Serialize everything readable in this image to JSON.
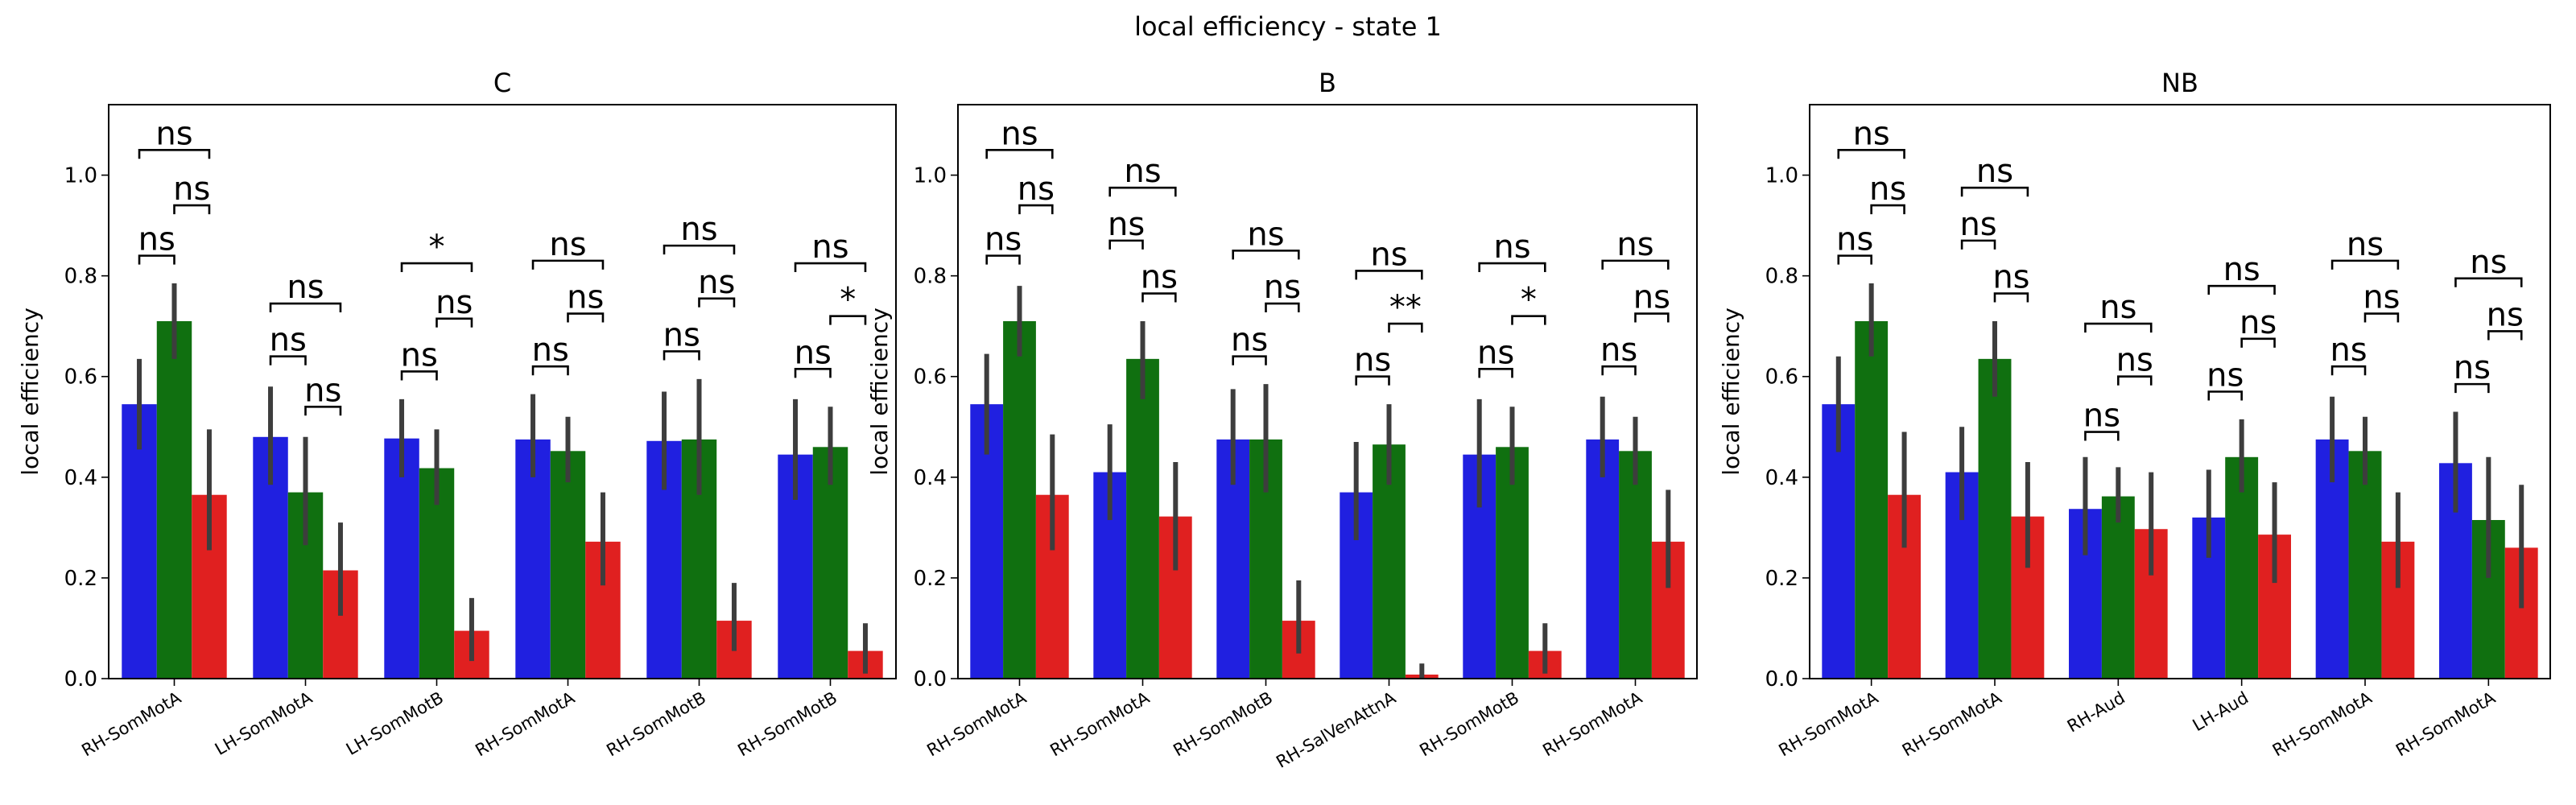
{
  "figure": {
    "title": "local efficiency - state 1"
  },
  "chart_data": [
    {
      "type": "bar",
      "title": "C",
      "ylabel": "local efficiency",
      "xlabel": "",
      "ylim": [
        0,
        1.14
      ],
      "yticks": [
        "0.0",
        "0.2",
        "0.4",
        "0.6",
        "0.8",
        "1.0"
      ],
      "categories": [
        "RH-SomMotA",
        "LH-SomMotA",
        "LH-SomMotB",
        "RH-SomMotA",
        "RH-SomMotB",
        "RH-SomMotB"
      ],
      "series": [
        {
          "color": "#2020e0",
          "values": [
            0.545,
            0.48,
            0.477,
            0.475,
            0.472,
            0.445
          ],
          "err_low": [
            0.455,
            0.385,
            0.4,
            0.4,
            0.375,
            0.355
          ],
          "err_high": [
            0.635,
            0.58,
            0.555,
            0.565,
            0.57,
            0.555
          ]
        },
        {
          "color": "#107010",
          "values": [
            0.71,
            0.37,
            0.418,
            0.452,
            0.475,
            0.46
          ],
          "err_low": [
            0.635,
            0.265,
            0.345,
            0.39,
            0.365,
            0.385
          ],
          "err_high": [
            0.785,
            0.48,
            0.495,
            0.52,
            0.595,
            0.54
          ]
        },
        {
          "color": "#e02020",
          "values": [
            0.365,
            0.215,
            0.095,
            0.272,
            0.115,
            0.055
          ],
          "err_low": [
            0.255,
            0.125,
            0.035,
            0.185,
            0.055,
            0.01
          ],
          "err_high": [
            0.495,
            0.31,
            0.16,
            0.37,
            0.19,
            0.11
          ]
        }
      ],
      "annotations": [
        {
          "group": 0,
          "from": 0,
          "to": 1,
          "y": 0.84,
          "label": "ns"
        },
        {
          "group": 0,
          "from": 1,
          "to": 2,
          "y": 0.94,
          "label": "ns"
        },
        {
          "group": 0,
          "from": 0,
          "to": 2,
          "y": 1.05,
          "label": "ns"
        },
        {
          "group": 1,
          "from": 0,
          "to": 1,
          "y": 0.64,
          "label": "ns"
        },
        {
          "group": 1,
          "from": 1,
          "to": 2,
          "y": 0.54,
          "label": "ns"
        },
        {
          "group": 1,
          "from": 0,
          "to": 2,
          "y": 0.745,
          "label": "ns"
        },
        {
          "group": 2,
          "from": 0,
          "to": 1,
          "y": 0.61,
          "label": "ns"
        },
        {
          "group": 2,
          "from": 1,
          "to": 2,
          "y": 0.715,
          "label": "ns"
        },
        {
          "group": 2,
          "from": 0,
          "to": 2,
          "y": 0.825,
          "label": "*"
        },
        {
          "group": 3,
          "from": 0,
          "to": 1,
          "y": 0.62,
          "label": "ns"
        },
        {
          "group": 3,
          "from": 1,
          "to": 2,
          "y": 0.725,
          "label": "ns"
        },
        {
          "group": 3,
          "from": 0,
          "to": 2,
          "y": 0.83,
          "label": "ns"
        },
        {
          "group": 4,
          "from": 0,
          "to": 1,
          "y": 0.65,
          "label": "ns"
        },
        {
          "group": 4,
          "from": 1,
          "to": 2,
          "y": 0.755,
          "label": "ns"
        },
        {
          "group": 4,
          "from": 0,
          "to": 2,
          "y": 0.86,
          "label": "ns"
        },
        {
          "group": 5,
          "from": 0,
          "to": 1,
          "y": 0.615,
          "label": "ns"
        },
        {
          "group": 5,
          "from": 1,
          "to": 2,
          "y": 0.72,
          "label": "*"
        },
        {
          "group": 5,
          "from": 0,
          "to": 2,
          "y": 0.825,
          "label": "ns"
        }
      ]
    },
    {
      "type": "bar",
      "title": "B",
      "ylabel": "local efficiency",
      "xlabel": "",
      "ylim": [
        0,
        1.14
      ],
      "yticks": [
        "0.0",
        "0.2",
        "0.4",
        "0.6",
        "0.8",
        "1.0"
      ],
      "categories": [
        "RH-SomMotA",
        "RH-SomMotA",
        "RH-SomMotB",
        "RH-SalVenAttnA",
        "RH-SomMotB",
        "RH-SomMotA"
      ],
      "series": [
        {
          "color": "#2020e0",
          "values": [
            0.545,
            0.41,
            0.475,
            0.37,
            0.445,
            0.475
          ],
          "err_low": [
            0.445,
            0.315,
            0.385,
            0.275,
            0.34,
            0.4
          ],
          "err_high": [
            0.645,
            0.505,
            0.575,
            0.47,
            0.555,
            0.56
          ]
        },
        {
          "color": "#107010",
          "values": [
            0.71,
            0.635,
            0.475,
            0.465,
            0.46,
            0.452
          ],
          "err_low": [
            0.64,
            0.555,
            0.37,
            0.385,
            0.385,
            0.385
          ],
          "err_high": [
            0.78,
            0.71,
            0.585,
            0.545,
            0.54,
            0.52
          ]
        },
        {
          "color": "#e02020",
          "values": [
            0.365,
            0.322,
            0.115,
            0.008,
            0.055,
            0.272
          ],
          "err_low": [
            0.255,
            0.215,
            0.05,
            0.0,
            0.01,
            0.18
          ],
          "err_high": [
            0.485,
            0.43,
            0.195,
            0.03,
            0.11,
            0.375
          ]
        }
      ],
      "annotations": [
        {
          "group": 0,
          "from": 0,
          "to": 1,
          "y": 0.84,
          "label": "ns"
        },
        {
          "group": 0,
          "from": 1,
          "to": 2,
          "y": 0.94,
          "label": "ns"
        },
        {
          "group": 0,
          "from": 0,
          "to": 2,
          "y": 1.05,
          "label": "ns"
        },
        {
          "group": 1,
          "from": 0,
          "to": 1,
          "y": 0.87,
          "label": "ns"
        },
        {
          "group": 1,
          "from": 1,
          "to": 2,
          "y": 0.765,
          "label": "ns"
        },
        {
          "group": 1,
          "from": 0,
          "to": 2,
          "y": 0.975,
          "label": "ns"
        },
        {
          "group": 2,
          "from": 0,
          "to": 1,
          "y": 0.64,
          "label": "ns"
        },
        {
          "group": 2,
          "from": 1,
          "to": 2,
          "y": 0.745,
          "label": "ns"
        },
        {
          "group": 2,
          "from": 0,
          "to": 2,
          "y": 0.85,
          "label": "ns"
        },
        {
          "group": 3,
          "from": 0,
          "to": 1,
          "y": 0.6,
          "label": "ns"
        },
        {
          "group": 3,
          "from": 1,
          "to": 2,
          "y": 0.705,
          "label": "**"
        },
        {
          "group": 3,
          "from": 0,
          "to": 2,
          "y": 0.81,
          "label": "ns"
        },
        {
          "group": 4,
          "from": 0,
          "to": 1,
          "y": 0.615,
          "label": "ns"
        },
        {
          "group": 4,
          "from": 1,
          "to": 2,
          "y": 0.72,
          "label": "*"
        },
        {
          "group": 4,
          "from": 0,
          "to": 2,
          "y": 0.825,
          "label": "ns"
        },
        {
          "group": 5,
          "from": 0,
          "to": 1,
          "y": 0.62,
          "label": "ns"
        },
        {
          "group": 5,
          "from": 1,
          "to": 2,
          "y": 0.725,
          "label": "ns"
        },
        {
          "group": 5,
          "from": 0,
          "to": 2,
          "y": 0.83,
          "label": "ns"
        }
      ]
    },
    {
      "type": "bar",
      "title": "NB",
      "ylabel": "local efficiency",
      "xlabel": "",
      "ylim": [
        0,
        1.14
      ],
      "yticks": [
        "0.0",
        "0.2",
        "0.4",
        "0.6",
        "0.8",
        "1.0"
      ],
      "categories": [
        "RH-SomMotA",
        "RH-SomMotA",
        "RH-Aud",
        "LH-Aud",
        "RH-SomMotA",
        "RH-SomMotA"
      ],
      "series": [
        {
          "color": "#2020e0",
          "values": [
            0.545,
            0.41,
            0.337,
            0.32,
            0.475,
            0.428
          ],
          "err_low": [
            0.45,
            0.315,
            0.245,
            0.24,
            0.39,
            0.33
          ],
          "err_high": [
            0.64,
            0.5,
            0.44,
            0.415,
            0.56,
            0.53
          ]
        },
        {
          "color": "#107010",
          "values": [
            0.71,
            0.635,
            0.362,
            0.44,
            0.452,
            0.315
          ],
          "err_low": [
            0.64,
            0.56,
            0.31,
            0.37,
            0.385,
            0.2
          ],
          "err_high": [
            0.785,
            0.71,
            0.42,
            0.515,
            0.52,
            0.44
          ]
        },
        {
          "color": "#e02020",
          "values": [
            0.365,
            0.322,
            0.297,
            0.286,
            0.272,
            0.26
          ],
          "err_low": [
            0.26,
            0.22,
            0.205,
            0.19,
            0.18,
            0.14
          ],
          "err_high": [
            0.49,
            0.43,
            0.41,
            0.39,
            0.37,
            0.385
          ]
        }
      ],
      "annotations": [
        {
          "group": 0,
          "from": 0,
          "to": 1,
          "y": 0.84,
          "label": "ns"
        },
        {
          "group": 0,
          "from": 1,
          "to": 2,
          "y": 0.94,
          "label": "ns"
        },
        {
          "group": 0,
          "from": 0,
          "to": 2,
          "y": 1.05,
          "label": "ns"
        },
        {
          "group": 1,
          "from": 0,
          "to": 1,
          "y": 0.87,
          "label": "ns"
        },
        {
          "group": 1,
          "from": 1,
          "to": 2,
          "y": 0.765,
          "label": "ns"
        },
        {
          "group": 1,
          "from": 0,
          "to": 2,
          "y": 0.975,
          "label": "ns"
        },
        {
          "group": 2,
          "from": 0,
          "to": 1,
          "y": 0.49,
          "label": "ns"
        },
        {
          "group": 2,
          "from": 1,
          "to": 2,
          "y": 0.6,
          "label": "ns"
        },
        {
          "group": 2,
          "from": 0,
          "to": 2,
          "y": 0.705,
          "label": "ns"
        },
        {
          "group": 3,
          "from": 0,
          "to": 1,
          "y": 0.57,
          "label": "ns"
        },
        {
          "group": 3,
          "from": 1,
          "to": 2,
          "y": 0.675,
          "label": "ns"
        },
        {
          "group": 3,
          "from": 0,
          "to": 2,
          "y": 0.78,
          "label": "ns"
        },
        {
          "group": 4,
          "from": 0,
          "to": 1,
          "y": 0.62,
          "label": "ns"
        },
        {
          "group": 4,
          "from": 1,
          "to": 2,
          "y": 0.725,
          "label": "ns"
        },
        {
          "group": 4,
          "from": 0,
          "to": 2,
          "y": 0.83,
          "label": "ns"
        },
        {
          "group": 5,
          "from": 0,
          "to": 1,
          "y": 0.585,
          "label": "ns"
        },
        {
          "group": 5,
          "from": 1,
          "to": 2,
          "y": 0.69,
          "label": "ns"
        },
        {
          "group": 5,
          "from": 0,
          "to": 2,
          "y": 0.795,
          "label": "ns"
        }
      ]
    }
  ]
}
